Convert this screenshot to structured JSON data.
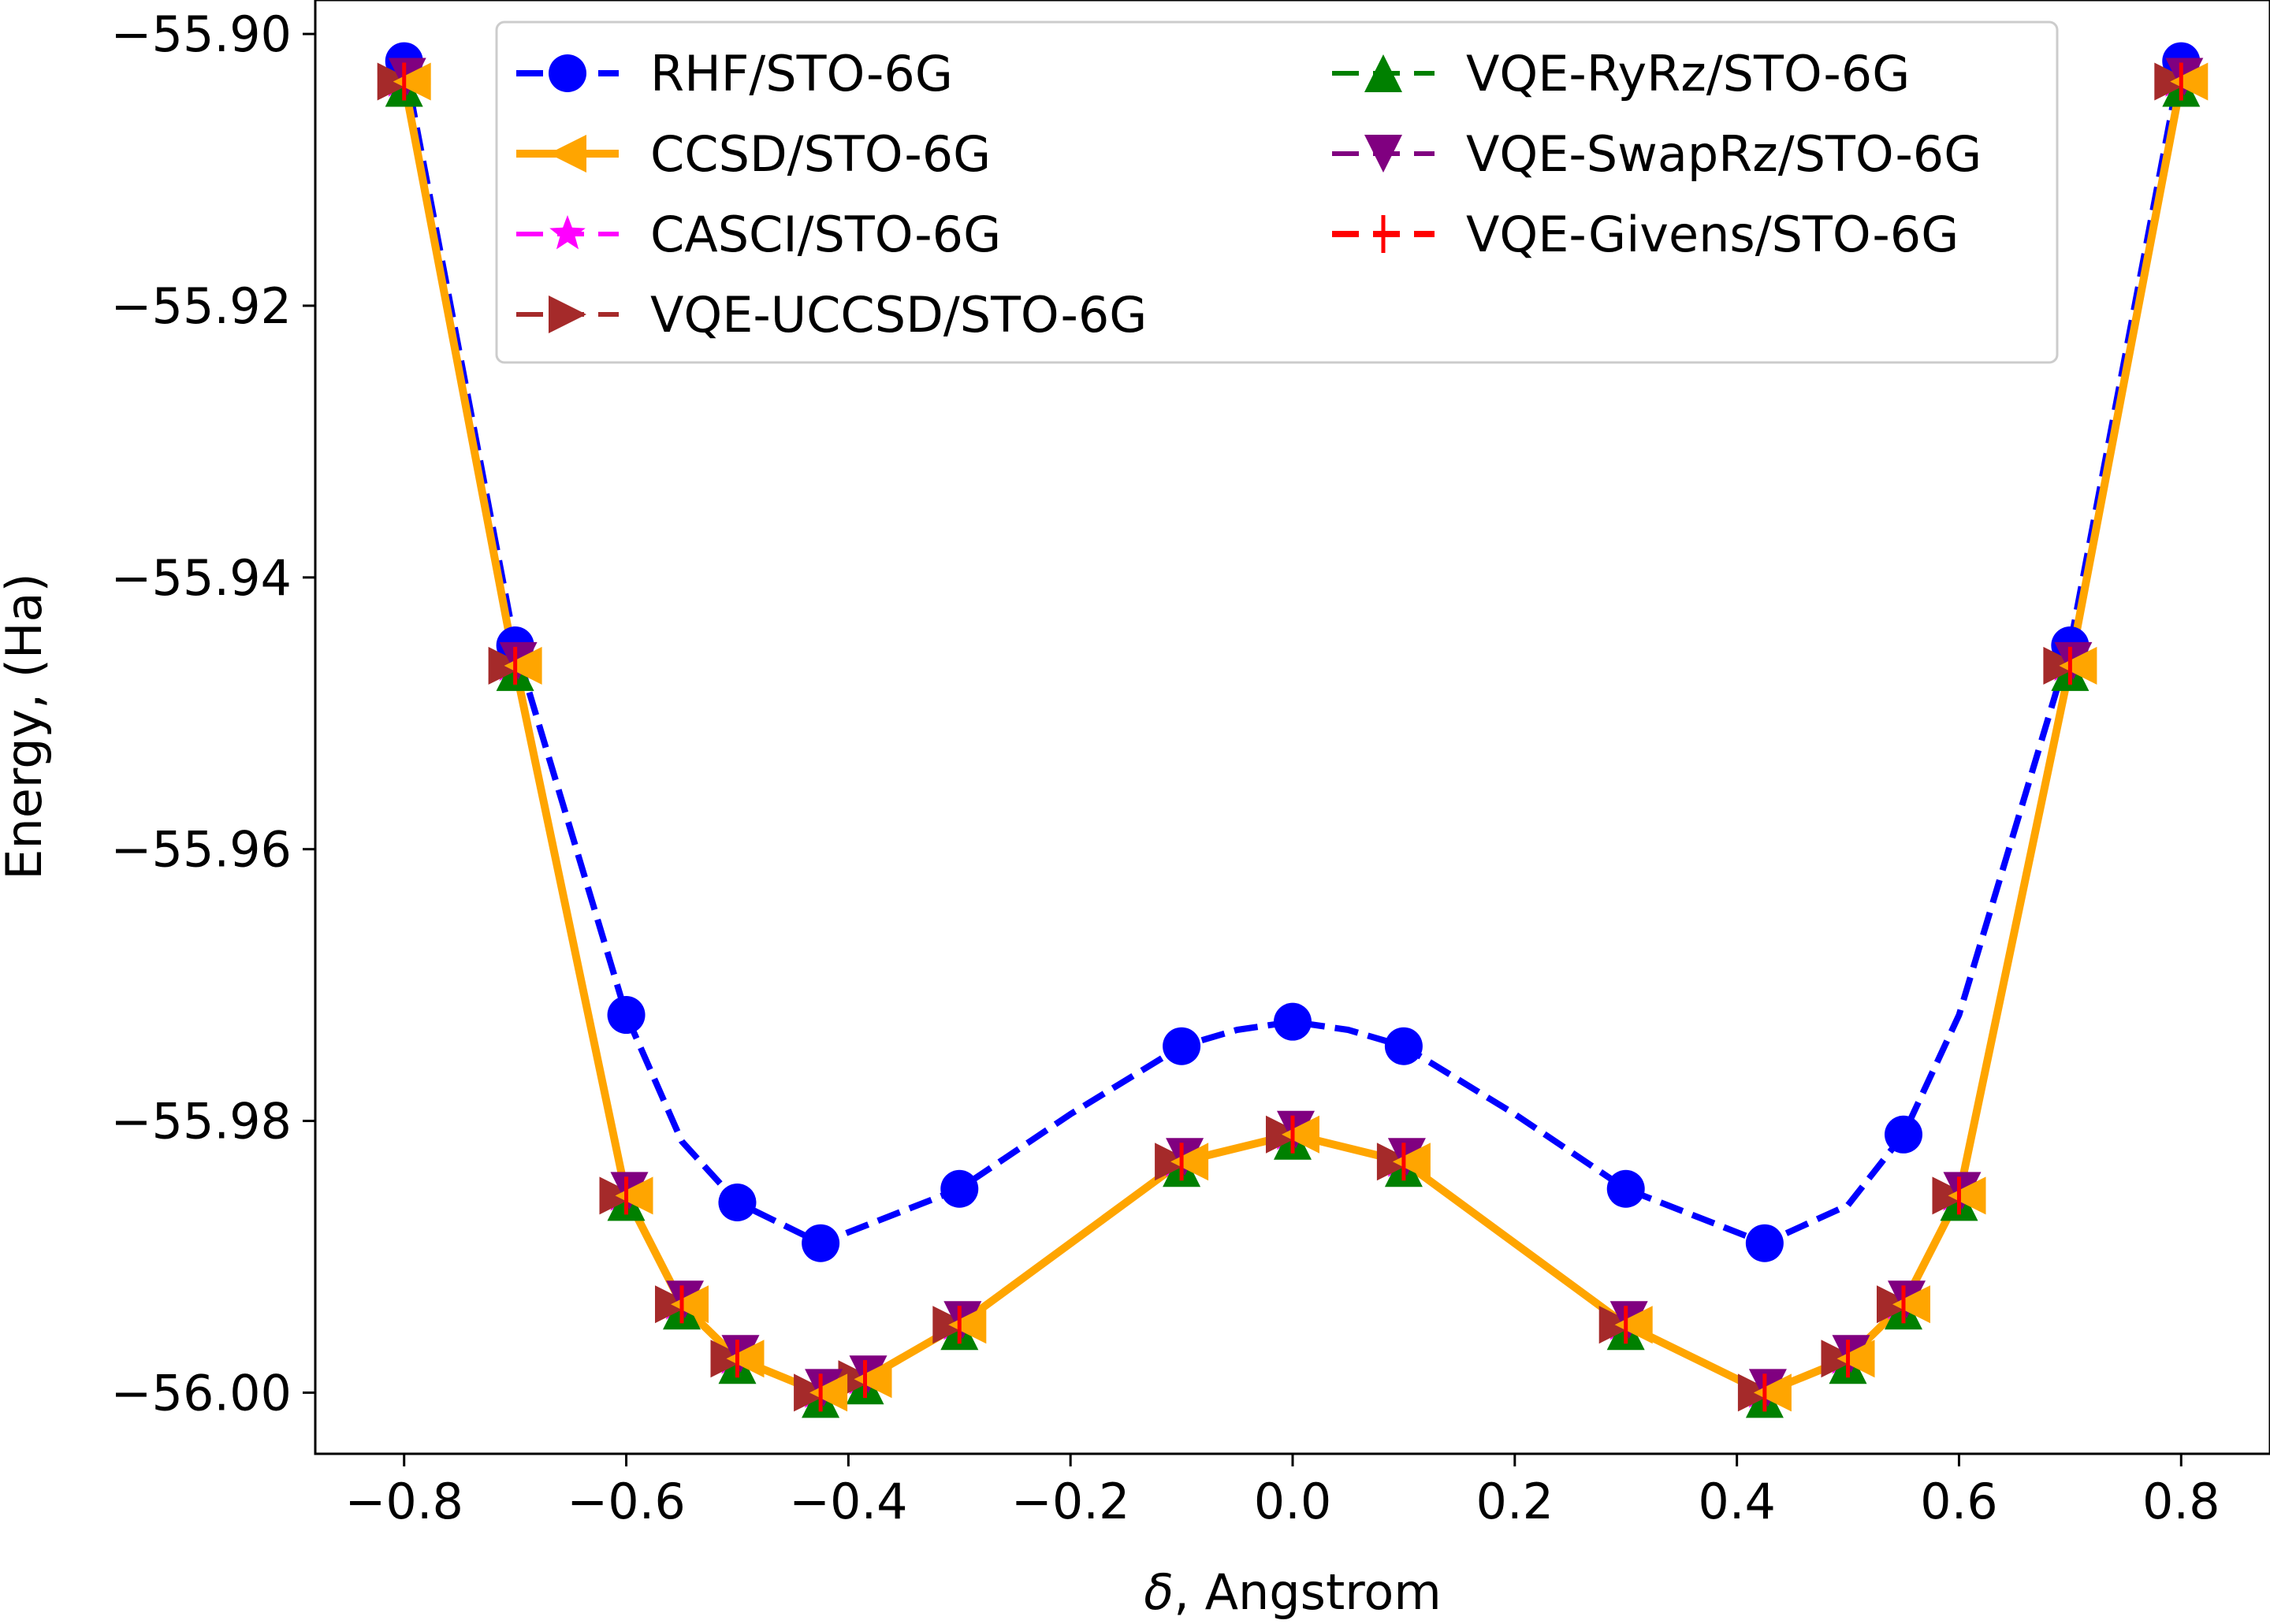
{
  "chart_data": {
    "type": "line",
    "title": "",
    "xlabel_symbol": "δ",
    "xlabel_rest": ", Angstrom",
    "ylabel": "Energy, (Ha)",
    "xlim": [
      -0.88,
      0.88
    ],
    "ylim": [
      -56.0045,
      -55.8975
    ],
    "xticks": [
      -0.8,
      -0.6,
      -0.4,
      -0.2,
      0.0,
      0.2,
      0.4,
      0.6,
      0.8
    ],
    "xtick_labels": [
      "−0.8",
      "−0.6",
      "−0.4",
      "−0.2",
      "0.0",
      "0.2",
      "0.4",
      "0.6",
      "0.8"
    ],
    "yticks": [
      -55.9,
      -55.92,
      -55.94,
      -55.96,
      -55.98,
      -56.0
    ],
    "ytick_labels": [
      "−55.90",
      "−55.92",
      "−55.94",
      "−55.96",
      "−55.98",
      "−56.00"
    ],
    "grid": false,
    "legend_position": "top",
    "x": [
      -0.8,
      -0.7,
      -0.6,
      -0.55,
      -0.5,
      -0.425,
      -0.385,
      -0.3,
      -0.1,
      0.0,
      0.1,
      0.3,
      0.425,
      0.5,
      0.55,
      0.6,
      0.7,
      0.8
    ],
    "series": [
      {
        "name": "RHF/STO-6G",
        "color": "#0000ff",
        "marker": "circle",
        "line": "dashed",
        "marker_x": [
          -0.8,
          -0.7,
          -0.6,
          -0.5,
          -0.425,
          -0.3,
          -0.1,
          0.0,
          0.1,
          0.3,
          0.425,
          0.55,
          0.8
        ],
        "marker_values": [
          -55.902,
          -55.945,
          -55.9722,
          -55.986,
          -55.989,
          -55.985,
          -55.9745,
          -55.9727,
          -55.9745,
          -55.985,
          -55.989,
          -55.981,
          -55.902
        ],
        "extra_x": [
          0.7
        ],
        "extra_values": [
          -55.945
        ],
        "line_x": [
          -0.8,
          -0.7,
          -0.6,
          -0.55,
          -0.5,
          -0.425,
          -0.3,
          -0.2,
          -0.1,
          -0.05,
          0.0,
          0.05,
          0.1,
          0.2,
          0.3,
          0.425,
          0.5,
          0.55,
          0.6,
          0.7,
          0.8
        ],
        "line_values": [
          -55.902,
          -55.945,
          -55.9722,
          -55.9815,
          -55.986,
          -55.989,
          -55.985,
          -55.9795,
          -55.9745,
          -55.9733,
          -55.9727,
          -55.9733,
          -55.9745,
          -55.9795,
          -55.985,
          -55.989,
          -55.9862,
          -55.981,
          -55.9722,
          -55.945,
          -55.902
        ]
      },
      {
        "name": "CCSD/STO-6G",
        "color": "#ffa500",
        "marker": "triangle-left",
        "line": "solid",
        "values": [
          -55.9035,
          -55.9465,
          -55.9855,
          -55.9935,
          -55.9975,
          -56.0,
          -55.999,
          -55.995,
          -55.983,
          -55.981,
          -55.983,
          -55.995,
          -56.0,
          -55.9975,
          -55.9935,
          -55.9855,
          -55.9465,
          -55.9035
        ]
      },
      {
        "name": "CASCI/STO-6G",
        "color": "#ff00ff",
        "marker": "star",
        "line": "dashed",
        "values": [
          -55.9035,
          -55.9465,
          -55.9855,
          -55.9935,
          -55.9975,
          -56.0,
          -55.999,
          -55.995,
          -55.983,
          -55.981,
          -55.983,
          -55.995,
          -56.0,
          -55.9975,
          -55.9935,
          -55.9855,
          -55.9465,
          -55.9035
        ]
      },
      {
        "name": "VQE-UCCSD/STO-6G",
        "color": "#a52a2a",
        "marker": "triangle-right",
        "line": "dashed",
        "values": [
          -55.9035,
          -55.9465,
          -55.9855,
          -55.9935,
          -55.9975,
          -56.0,
          -55.999,
          -55.995,
          -55.983,
          -55.981,
          -55.983,
          -55.995,
          -56.0,
          -55.9975,
          -55.9935,
          -55.9855,
          -55.9465,
          -55.9035
        ]
      },
      {
        "name": "VQE-RyRz/STO-6G",
        "color": "#008000",
        "marker": "triangle-up",
        "line": "dashed",
        "values": [
          -55.9035,
          -55.9465,
          -55.9855,
          -55.9935,
          -55.9975,
          -56.0,
          -55.999,
          -55.995,
          -55.983,
          -55.981,
          -55.983,
          -55.995,
          -56.0,
          -55.9975,
          -55.9935,
          -55.9855,
          -55.9465,
          -55.9035
        ]
      },
      {
        "name": "VQE-SwapRz/STO-6G",
        "color": "#800080",
        "marker": "triangle-down",
        "line": "dashed",
        "values": [
          -55.9035,
          -55.9465,
          -55.9855,
          -55.9935,
          -55.9975,
          -56.0,
          -55.999,
          -55.995,
          -55.983,
          -55.981,
          -55.983,
          -55.995,
          -56.0,
          -55.9975,
          -55.9935,
          -55.9855,
          -55.9465,
          -55.9035
        ]
      },
      {
        "name": "VQE-Givens/STO-6G",
        "color": "#ff0000",
        "marker": "tick",
        "line": "dashed",
        "values": [
          -55.9035,
          -55.9465,
          -55.9855,
          -55.9935,
          -55.9975,
          -56.0,
          -55.999,
          -55.995,
          -55.983,
          -55.981,
          -55.983,
          -55.995,
          -56.0,
          -55.9975,
          -55.9935,
          -55.9855,
          -55.9465,
          -55.9035
        ]
      }
    ]
  }
}
